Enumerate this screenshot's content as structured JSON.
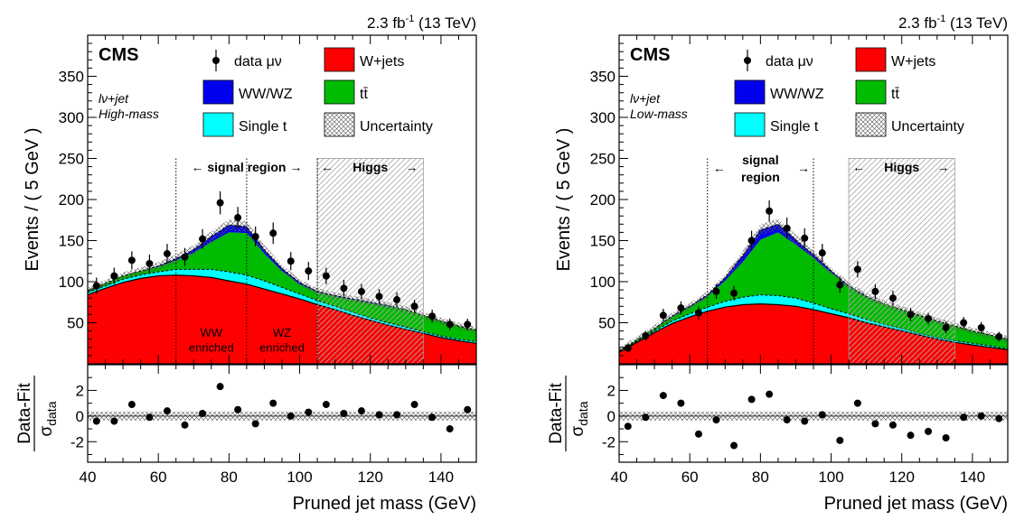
{
  "chart_data": [
    {
      "type": "area",
      "id": "high",
      "lumi": "2.3 fb",
      "lumi_sup": "-1",
      "lumi_suffix": "(13 TeV)",
      "experiment": "CMS",
      "category_line1": "lν+jet",
      "category_line2": "High-mass",
      "ylabel": "Events / ( 5 GeV )",
      "xlabel": "Pruned jet mass (GeV)",
      "ratio_ylabel_num": "Data-Fit",
      "ratio_ylabel_den": "σ",
      "ratio_ylabel_den_sub": "data",
      "xlim": [
        40,
        150
      ],
      "ylim": [
        0,
        400
      ],
      "ratio_ylim": [
        -3.6,
        4.0
      ],
      "x_ticks": [
        "40",
        "60",
        "80",
        "100",
        "120",
        "140"
      ],
      "y_ticks": [
        "50",
        "100",
        "150",
        "200",
        "250",
        "300",
        "350"
      ],
      "ratio_ticks": [
        "2",
        "0",
        "-2"
      ],
      "legend": {
        "data": "data μν",
        "wjets": "W+jets",
        "wwwz": "WW/WZ",
        "ttbar": "tt̄",
        "singlet": "Single t",
        "unc": "Uncertainty"
      },
      "colors": {
        "wjets": "#ff0000",
        "singlet": "#00ffff",
        "ttbar": "#00bb00",
        "wwwz": "#0000ee"
      },
      "signal_region": {
        "label": "signal region",
        "x_range": [
          65,
          105
        ],
        "label_lines": [
          "← signal region →"
        ]
      },
      "higgs_region": {
        "label": "Higgs",
        "x_range": [
          105,
          135
        ]
      },
      "subregion_lines": [
        65,
        85,
        105
      ],
      "enriched_labels": [
        {
          "line1": "WW",
          "line2": "enriched",
          "x": 75
        },
        {
          "line1": "WZ",
          "line2": "enriched",
          "x": 95
        }
      ],
      "x": [
        42.5,
        47.5,
        52.5,
        57.5,
        62.5,
        67.5,
        72.5,
        77.5,
        82.5,
        87.5,
        92.5,
        97.5,
        102.5,
        107.5,
        112.5,
        117.5,
        122.5,
        127.5,
        132.5,
        137.5,
        142.5,
        147.5
      ],
      "data_values": [
        95,
        107,
        126,
        122,
        134,
        130,
        152,
        196,
        178,
        155,
        159,
        125,
        113,
        107,
        92,
        88,
        82,
        78,
        70,
        58,
        48,
        48
      ],
      "data_errors": [
        10,
        10,
        11,
        11,
        12,
        11,
        12,
        14,
        13,
        12,
        13,
        11,
        11,
        10,
        10,
        9,
        9,
        9,
        8,
        8,
        7,
        7
      ],
      "curve_x": [
        40,
        45,
        50,
        55,
        60,
        65,
        70,
        75,
        80,
        85,
        90,
        95,
        100,
        105,
        110,
        115,
        120,
        125,
        130,
        135,
        140,
        145,
        150
      ],
      "stack": {
        "wjets": [
          84,
          92,
          99,
          104,
          107,
          108,
          107,
          105,
          101,
          97,
          91,
          85,
          79,
          72,
          66,
          59,
          53,
          47,
          42,
          37,
          32,
          28,
          25
        ],
        "singlet": [
          3,
          3,
          4,
          4,
          5,
          7,
          8,
          10,
          11,
          11,
          10,
          8,
          6,
          5,
          4,
          4,
          3,
          3,
          3,
          2,
          2,
          2,
          2
        ],
        "ttbar": [
          2,
          3,
          4,
          5,
          6,
          11,
          20,
          33,
          48,
          51,
          33,
          20,
          12,
          10,
          12,
          15,
          18,
          20,
          21,
          20,
          18,
          16,
          14
        ],
        "wwwz": [
          0,
          0,
          0,
          0,
          1,
          2,
          4,
          7,
          9,
          8,
          5,
          3,
          2,
          1,
          1,
          1,
          1,
          1,
          0,
          0,
          0,
          0,
          0
        ]
      },
      "ratio_values": [
        -0.4,
        -0.4,
        0.9,
        -0.1,
        0.4,
        -0.7,
        0.2,
        2.3,
        0.5,
        -0.6,
        1.0,
        0.0,
        0.3,
        0.9,
        0.2,
        0.4,
        0.1,
        0.1,
        0.9,
        -0.1,
        -1.0,
        0.5
      ]
    },
    {
      "type": "area",
      "id": "low",
      "lumi": "2.3 fb",
      "lumi_sup": "-1",
      "lumi_suffix": "(13 TeV)",
      "experiment": "CMS",
      "category_line1": "lν+jet",
      "category_line2": "Low-mass",
      "ylabel": "Events / ( 5 GeV )",
      "xlabel": "Pruned jet mass (GeV)",
      "ratio_ylabel_num": "Data-Fit",
      "ratio_ylabel_den": "σ",
      "ratio_ylabel_den_sub": "data",
      "xlim": [
        40,
        150
      ],
      "ylim": [
        0,
        400
      ],
      "ratio_ylim": [
        -3.6,
        4.0
      ],
      "x_ticks": [
        "40",
        "60",
        "80",
        "100",
        "120",
        "140"
      ],
      "y_ticks": [
        "50",
        "100",
        "150",
        "200",
        "250",
        "300",
        "350"
      ],
      "ratio_ticks": [
        "2",
        "0",
        "-2"
      ],
      "legend": {
        "data": "data μν",
        "wjets": "W+jets",
        "wwwz": "WW/WZ",
        "ttbar": "tt̄",
        "singlet": "Single t",
        "unc": "Uncertainty"
      },
      "colors": {
        "wjets": "#ff0000",
        "singlet": "#00ffff",
        "ttbar": "#00bb00",
        "wwwz": "#0000ee"
      },
      "signal_region": {
        "label": "signal region",
        "x_range": [
          65,
          95
        ],
        "label_lines": [
          "signal",
          "region"
        ]
      },
      "higgs_region": {
        "label": "Higgs",
        "x_range": [
          105,
          135
        ]
      },
      "subregion_lines": [
        65,
        95
      ],
      "enriched_labels": [],
      "x": [
        42.5,
        47.5,
        52.5,
        57.5,
        62.5,
        67.5,
        72.5,
        77.5,
        82.5,
        87.5,
        92.5,
        97.5,
        102.5,
        107.5,
        112.5,
        117.5,
        122.5,
        127.5,
        132.5,
        137.5,
        142.5,
        147.5
      ],
      "data_values": [
        19,
        34,
        59,
        68,
        62,
        88,
        86,
        150,
        186,
        165,
        153,
        135,
        96,
        115,
        88,
        80,
        60,
        55,
        44,
        50,
        44,
        33
      ],
      "data_errors": [
        5,
        6,
        8,
        8,
        8,
        9,
        9,
        12,
        13,
        13,
        12,
        11,
        10,
        10,
        9,
        9,
        8,
        7,
        7,
        7,
        7,
        6
      ],
      "curve_x": [
        40,
        45,
        50,
        55,
        60,
        65,
        70,
        75,
        80,
        85,
        90,
        95,
        100,
        105,
        110,
        115,
        120,
        125,
        130,
        135,
        140,
        145,
        150
      ],
      "stack": {
        "wjets": [
          14,
          26,
          38,
          49,
          57,
          64,
          69,
          72,
          73,
          72,
          70,
          66,
          61,
          56,
          50,
          45,
          40,
          35,
          30,
          26,
          23,
          20,
          17
        ],
        "singlet": [
          1,
          1,
          2,
          3,
          4,
          5,
          7,
          9,
          11,
          11,
          10,
          8,
          6,
          5,
          4,
          3,
          3,
          2,
          2,
          2,
          2,
          2,
          1
        ],
        "ttbar": [
          1,
          2,
          3,
          5,
          8,
          13,
          25,
          43,
          67,
          77,
          65,
          55,
          44,
          33,
          27,
          25,
          23,
          22,
          20,
          18,
          15,
          13,
          12
        ],
        "wwwz": [
          0,
          0,
          0,
          1,
          1,
          2,
          4,
          8,
          12,
          10,
          6,
          4,
          2,
          1,
          1,
          0,
          0,
          0,
          0,
          0,
          0,
          0,
          0
        ]
      },
      "ratio_values": [
        -0.8,
        -0.1,
        1.6,
        1.0,
        -1.4,
        -0.3,
        -2.3,
        1.3,
        1.7,
        -0.3,
        -0.4,
        0.1,
        -1.9,
        1.0,
        -0.6,
        -0.7,
        -1.5,
        -1.2,
        -1.7,
        -0.1,
        0.0,
        -0.2
      ]
    }
  ]
}
